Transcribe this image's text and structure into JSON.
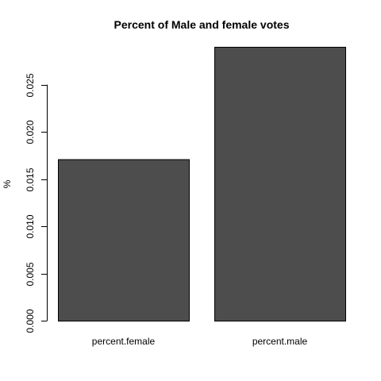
{
  "chart_data": {
    "type": "bar",
    "title": "Percent of Male and female votes",
    "xlabel": "",
    "ylabel": "%",
    "categories": [
      "percent.female",
      "percent.male"
    ],
    "values": [
      0.0171,
      0.029
    ],
    "ylim": [
      0,
      0.029
    ],
    "yticks": [
      0.0,
      0.005,
      0.01,
      0.015,
      0.02,
      0.025
    ],
    "ytick_labels": [
      "0.000",
      "0.005",
      "0.010",
      "0.015",
      "0.020",
      "0.025"
    ],
    "grid": false,
    "legend": "none",
    "bar_color": "#4d4d4d",
    "bar_edge_color": "#000000"
  }
}
